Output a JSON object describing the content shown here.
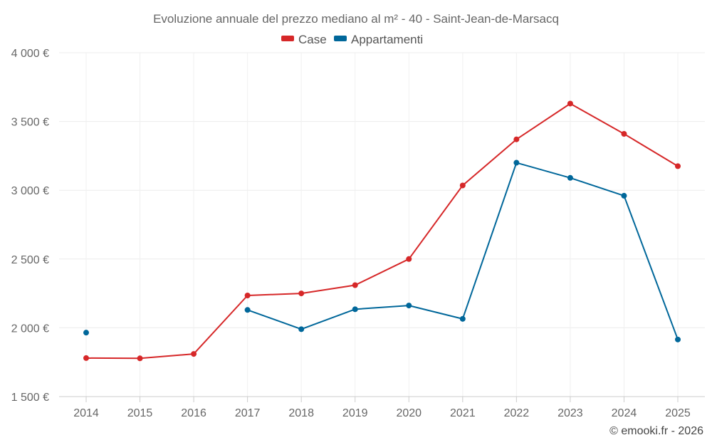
{
  "chart_data": {
    "type": "line",
    "title": "Evoluzione annuale del prezzo mediano al m² - 40 - Saint-Jean-de-Marsacq",
    "categories": [
      "2014",
      "2015",
      "2016",
      "2017",
      "2018",
      "2019",
      "2020",
      "2021",
      "2022",
      "2023",
      "2024",
      "2025"
    ],
    "yticks": [
      "1 500 €",
      "2 000 €",
      "2 500 €",
      "3 000 €",
      "3 500 €",
      "4 000 €"
    ],
    "ytick_values": [
      1500,
      2000,
      2500,
      3000,
      3500,
      4000
    ],
    "ylim": [
      1500,
      4000
    ],
    "grid": true,
    "legend_position": "top-center",
    "series": [
      {
        "name": "Case",
        "color": "#d62728",
        "values": [
          1780,
          1778,
          1810,
          2235,
          2250,
          2310,
          2500,
          3035,
          3370,
          3630,
          3410,
          3175
        ]
      },
      {
        "name": "Appartamenti",
        "color": "#00679a",
        "values": [
          1965,
          null,
          null,
          2130,
          1990,
          2135,
          2162,
          2065,
          3200,
          3090,
          2960,
          1915
        ]
      }
    ]
  },
  "credit": "© emooki.fr - 2026"
}
